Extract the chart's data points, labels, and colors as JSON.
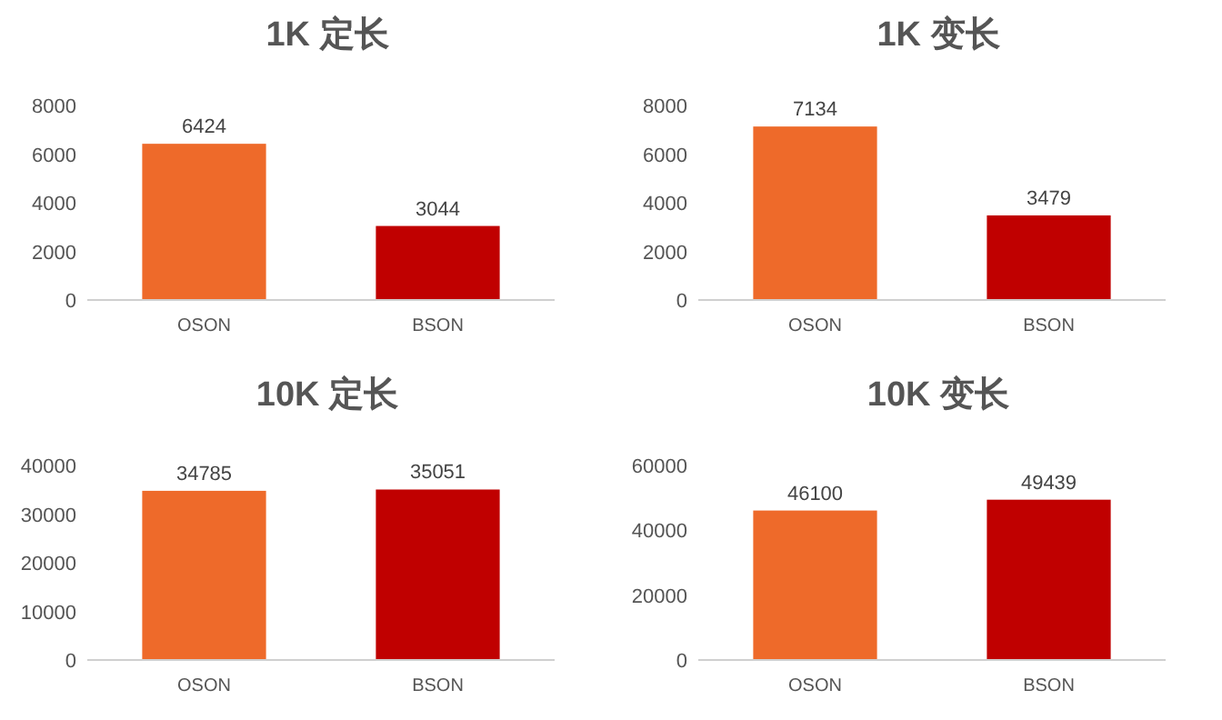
{
  "chart_data": [
    {
      "type": "bar",
      "title": "1K 定长",
      "categories": [
        "OSON",
        "BSON"
      ],
      "values": [
        6424,
        3044
      ],
      "colors": [
        "#ee6a2a",
        "#c00000"
      ],
      "ylim": [
        0,
        8000
      ],
      "yticks": [
        0,
        2000,
        4000,
        6000,
        8000
      ],
      "data_labels": true
    },
    {
      "type": "bar",
      "title": "1K 变长",
      "categories": [
        "OSON",
        "BSON"
      ],
      "values": [
        7134,
        3479
      ],
      "colors": [
        "#ee6a2a",
        "#c00000"
      ],
      "ylim": [
        0,
        8000
      ],
      "yticks": [
        0,
        2000,
        4000,
        6000,
        8000
      ],
      "data_labels": true
    },
    {
      "type": "bar",
      "title": "10K 定长",
      "categories": [
        "OSON",
        "BSON"
      ],
      "values": [
        34785,
        35051
      ],
      "colors": [
        "#ee6a2a",
        "#c00000"
      ],
      "ylim": [
        0,
        40000
      ],
      "yticks": [
        0,
        10000,
        20000,
        30000,
        40000
      ],
      "data_labels": true
    },
    {
      "type": "bar",
      "title": "10K 变长",
      "categories": [
        "OSON",
        "BSON"
      ],
      "values": [
        46100,
        49439
      ],
      "colors": [
        "#ee6a2a",
        "#c00000"
      ],
      "ylim": [
        0,
        60000
      ],
      "yticks": [
        0,
        20000,
        40000,
        60000
      ],
      "data_labels": true
    }
  ]
}
